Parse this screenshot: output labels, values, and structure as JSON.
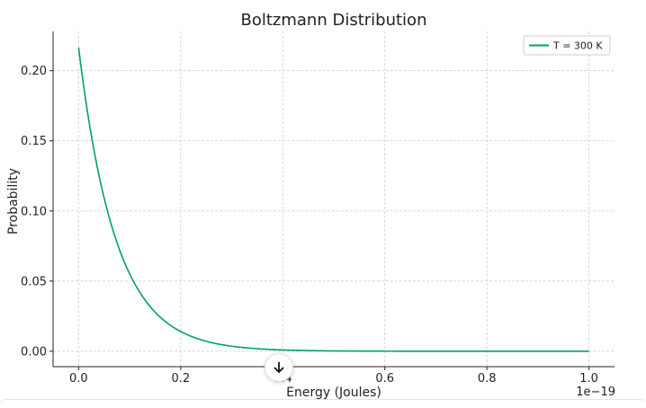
{
  "chart_data": {
    "type": "line",
    "title": "Boltzmann Distribution",
    "xlabel": "Energy (Joules)",
    "ylabel": "Probability",
    "x_offset_label": "1e−19",
    "xlim": [
      -0.05,
      1.05
    ],
    "ylim": [
      -0.011,
      0.228
    ],
    "xticks": [
      0.0,
      0.2,
      0.4,
      0.6,
      0.8,
      1.0
    ],
    "xtick_labels": [
      "0.0",
      "0.2",
      "0.4",
      "0.6",
      "0.8",
      "1.0"
    ],
    "yticks": [
      0.0,
      0.05,
      0.1,
      0.15,
      0.2
    ],
    "ytick_labels": [
      "0.00",
      "0.05",
      "0.10",
      "0.15",
      "0.20"
    ],
    "grid": true,
    "grid_style": "dashed",
    "legend_position": "top-right",
    "series": [
      {
        "name": "T = 300 K",
        "color": "#009e73",
        "function": "exponential",
        "x": [
          0.0,
          0.02,
          0.04,
          0.06,
          0.08,
          0.1,
          0.12,
          0.14,
          0.16,
          0.18,
          0.2,
          0.25,
          0.3,
          0.35,
          0.4,
          0.5,
          0.6,
          0.7,
          0.8,
          0.9,
          1.0
        ],
        "y": [
          0.2165,
          0.1647,
          0.1253,
          0.0953,
          0.0725,
          0.0552,
          0.042,
          0.0319,
          0.0243,
          0.0185,
          0.0141,
          0.007,
          0.0035,
          0.0017,
          0.0009,
          0.0002,
          0.0001,
          0.0,
          0.0,
          0.0,
          0.0
        ]
      }
    ]
  },
  "overlay": {
    "scroll_icon": "arrow-down-icon"
  }
}
